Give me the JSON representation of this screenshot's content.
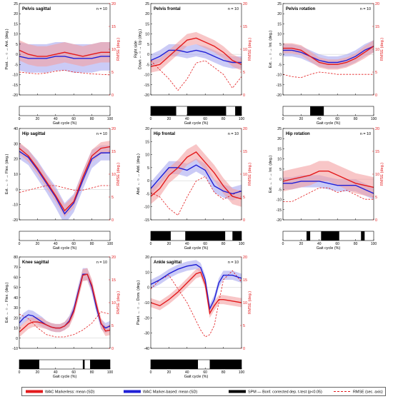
{
  "common": {
    "xlabel": "Gait cycle (%)",
    "xlim": [
      0,
      100
    ],
    "xticks": [
      0,
      20,
      40,
      60,
      80,
      100
    ],
    "rmse_label": "RMSE (deg.)",
    "rmse_lim": [
      0,
      20
    ],
    "rmse_ticks": [
      0,
      5,
      10,
      15,
      20
    ],
    "colors": {
      "markerless": "#e31a1c",
      "markerbased": "#1f1fd6",
      "spm": "#000000",
      "rmse": "#e31a1c"
    }
  },
  "legend": {
    "markerless": "WAC Markerless: mean (SD)",
    "markerbased": "WAC Marker-based: mean (SD)",
    "spm": "SPM — Bonf. corrected dep. t-test (p<0.05)",
    "rmse": "RMSE (sec. axis)"
  },
  "chart_data": [
    {
      "type": "line",
      "title": "Pelvis sagittal",
      "n_label": "n = 10",
      "ylabel": "Post. ← ○ → Ant. (deg.)",
      "ylim": [
        -20,
        25
      ],
      "yticks": [
        -20,
        -15,
        -10,
        -5,
        0,
        5,
        10,
        15,
        20,
        25
      ],
      "series": [
        {
          "name": "WAC Markerless",
          "x": [
            0,
            10,
            20,
            30,
            40,
            50,
            60,
            70,
            80,
            90,
            100
          ],
          "mean": [
            2,
            0,
            -1,
            -1,
            0,
            1,
            0,
            -1,
            0,
            1,
            1
          ],
          "sd": [
            5,
            5,
            5,
            5,
            5,
            5,
            5,
            5,
            5,
            5,
            5
          ]
        },
        {
          "name": "WAC Marker-based",
          "x": [
            0,
            10,
            20,
            30,
            40,
            50,
            60,
            70,
            80,
            90,
            100
          ],
          "mean": [
            -1,
            -2,
            -2,
            -2,
            -1,
            -1,
            -2,
            -2,
            -2,
            -1,
            -1
          ],
          "sd": [
            7,
            7,
            7,
            7,
            7,
            7,
            7,
            7,
            7,
            7,
            7
          ]
        }
      ],
      "rmse": {
        "x": [
          0,
          10,
          20,
          30,
          40,
          50,
          60,
          70,
          80,
          90,
          100
        ],
        "values": [
          5.0,
          4.8,
          4.6,
          4.8,
          5.2,
          5.4,
          5.0,
          4.8,
          4.6,
          4.5,
          4.4
        ]
      },
      "spm_significant": []
    },
    {
      "type": "line",
      "title": "Pelvis frontal",
      "n_label": "n = 10",
      "ylabel": "Right side\nDown ← ○ → Up (deg.)",
      "ylim": [
        -20,
        25
      ],
      "yticks": [
        -20,
        -15,
        -10,
        -5,
        0,
        5,
        10,
        15,
        20,
        25
      ],
      "series": [
        {
          "name": "WAC Markerless",
          "x": [
            0,
            10,
            20,
            30,
            40,
            50,
            60,
            70,
            80,
            90,
            100
          ],
          "mean": [
            -6,
            -5,
            -1,
            3,
            7,
            8,
            6,
            4,
            1,
            -3,
            -5
          ],
          "sd": [
            3,
            3,
            3,
            3,
            3,
            3,
            3,
            3,
            3,
            3,
            3
          ]
        },
        {
          "name": "WAC Marker-based",
          "x": [
            0,
            10,
            20,
            30,
            40,
            50,
            60,
            70,
            80,
            90,
            100
          ],
          "mean": [
            -3,
            -1,
            2,
            2,
            1,
            2,
            1,
            -1,
            -3,
            -4,
            -4
          ],
          "sd": [
            3,
            3,
            3,
            3,
            3,
            3,
            3,
            3,
            3,
            3,
            3
          ]
        }
      ],
      "rmse": {
        "x": [
          0,
          10,
          20,
          30,
          40,
          50,
          60,
          70,
          80,
          90,
          100
        ],
        "values": [
          7.5,
          5.5,
          3.5,
          1.0,
          3.5,
          7.0,
          7.5,
          6.0,
          4.5,
          1.5,
          4.0
        ]
      },
      "spm_significant": [
        [
          0,
          28
        ],
        [
          40,
          83
        ],
        [
          93,
          100
        ]
      ]
    },
    {
      "type": "line",
      "title": "Pelvis rotation",
      "n_label": "n = 10",
      "ylabel": "Ext. ← ○ → Int. (deg.)",
      "ylim": [
        -20,
        25
      ],
      "yticks": [
        -20,
        -15,
        -10,
        -5,
        0,
        5,
        10,
        15,
        20,
        25
      ],
      "series": [
        {
          "name": "WAC Markerless",
          "x": [
            0,
            10,
            20,
            30,
            40,
            50,
            60,
            70,
            80,
            90,
            100
          ],
          "mean": [
            3,
            3,
            2,
            -1,
            -4,
            -5,
            -5,
            -4,
            -2,
            1,
            4
          ],
          "sd": [
            2.5,
            2.5,
            2.5,
            2.5,
            2.5,
            2.5,
            2.5,
            2.5,
            2.5,
            3,
            3
          ]
        },
        {
          "name": "WAC Marker-based",
          "x": [
            0,
            10,
            20,
            30,
            40,
            50,
            60,
            70,
            80,
            90,
            100
          ],
          "mean": [
            2,
            2,
            1,
            -1,
            -3,
            -4,
            -4,
            -3,
            -1,
            2,
            4
          ],
          "sd": [
            3,
            3,
            3,
            3,
            3,
            3,
            3,
            3,
            3,
            3,
            3
          ]
        }
      ],
      "rmse": {
        "x": [
          0,
          10,
          20,
          30,
          40,
          50,
          60,
          70,
          80,
          90,
          100
        ],
        "values": [
          4.5,
          4.0,
          3.8,
          4.5,
          5.0,
          4.8,
          4.5,
          4.5,
          4.5,
          4.5,
          4.5
        ]
      },
      "spm_significant": [
        [
          30,
          45
        ]
      ]
    },
    {
      "type": "line",
      "title": "Hip sagittal",
      "n_label": "n = 10",
      "ylabel": "Ext. ← ○ → Flex. (deg.)",
      "ylim": [
        -20,
        40
      ],
      "yticks": [
        -20,
        -10,
        0,
        10,
        20,
        30,
        40
      ],
      "series": [
        {
          "name": "WAC Markerless",
          "x": [
            0,
            10,
            20,
            30,
            40,
            50,
            60,
            70,
            80,
            90,
            100
          ],
          "mean": [
            27,
            22,
            14,
            5,
            -4,
            -14,
            -8,
            8,
            22,
            27,
            28
          ],
          "sd": [
            4,
            4,
            4,
            4,
            4,
            4,
            4,
            4,
            4,
            4,
            4
          ]
        },
        {
          "name": "WAC Marker-based",
          "x": [
            0,
            10,
            20,
            30,
            40,
            50,
            60,
            70,
            80,
            90,
            100
          ],
          "mean": [
            25,
            21,
            13,
            4,
            -5,
            -16,
            -9,
            6,
            20,
            24,
            24
          ],
          "sd": [
            5,
            5,
            6,
            6,
            7,
            7,
            6,
            6,
            6,
            5,
            5
          ]
        }
      ],
      "rmse": {
        "x": [
          0,
          10,
          20,
          30,
          40,
          50,
          60,
          70,
          80,
          90,
          100
        ],
        "values": [
          6.0,
          6.5,
          7.0,
          7.5,
          7.5,
          7.0,
          6.5,
          6.5,
          7.0,
          7.5,
          7.5
        ]
      },
      "spm_significant": []
    },
    {
      "type": "line",
      "title": "Hip frontal",
      "n_label": "n = 10",
      "ylabel": "Abd. ← ○ → Add. (deg.)",
      "ylim": [
        -15,
        20
      ],
      "yticks": [
        -15,
        -10,
        -5,
        0,
        5,
        10,
        15,
        20
      ],
      "series": [
        {
          "name": "WAC Markerless",
          "x": [
            0,
            10,
            20,
            30,
            40,
            50,
            60,
            70,
            80,
            90,
            100
          ],
          "mean": [
            -6,
            -3,
            2,
            5,
            9,
            11,
            7,
            3,
            -2,
            -6,
            -7
          ],
          "sd": [
            3,
            3,
            3,
            3,
            3,
            3,
            3,
            3,
            3,
            3,
            3
          ]
        },
        {
          "name": "WAC Marker-based",
          "x": [
            0,
            10,
            20,
            30,
            40,
            50,
            60,
            70,
            80,
            90,
            100
          ],
          "mean": [
            -3,
            1,
            5,
            5,
            4,
            6,
            4,
            -2,
            -4,
            -5,
            -4
          ],
          "sd": [
            2.5,
            2.5,
            2.5,
            2.5,
            2.5,
            2.5,
            2.5,
            2.5,
            2.5,
            2.5,
            2.5
          ]
        }
      ],
      "rmse": {
        "x": [
          0,
          10,
          20,
          30,
          40,
          50,
          60,
          70,
          80,
          90,
          100
        ],
        "values": [
          6.0,
          5.0,
          2.5,
          1.0,
          5.0,
          8.5,
          9.5,
          6.0,
          4.5,
          5.5,
          6.5
        ]
      },
      "spm_significant": [
        [
          0,
          22
        ],
        [
          38,
          82
        ],
        [
          90,
          100
        ]
      ]
    },
    {
      "type": "line",
      "title": "Hip rotation",
      "n_label": "n = 10",
      "ylabel": "Ext. ← ○ → Int. (deg.)",
      "ylim": [
        -20,
        25
      ],
      "yticks": [
        -20,
        -15,
        -10,
        -5,
        0,
        5,
        10,
        15,
        20,
        25
      ],
      "series": [
        {
          "name": "WAC Markerless",
          "x": [
            0,
            10,
            20,
            30,
            40,
            50,
            60,
            70,
            80,
            90,
            100
          ],
          "mean": [
            -1,
            0,
            1,
            2,
            4,
            4,
            2,
            0,
            -2,
            -3,
            -4
          ],
          "sd": [
            5,
            5,
            5,
            5,
            5,
            5,
            5,
            5,
            5,
            5,
            5
          ]
        },
        {
          "name": "WAC Marker-based",
          "x": [
            0,
            10,
            20,
            30,
            40,
            50,
            60,
            70,
            80,
            90,
            100
          ],
          "mean": [
            -2,
            -2,
            -1,
            -1,
            -1,
            -2,
            -3,
            -3,
            -3,
            -5,
            -7
          ],
          "sd": [
            3,
            3,
            3,
            3,
            3,
            3,
            3,
            3,
            3,
            3,
            3
          ]
        }
      ],
      "rmse": {
        "x": [
          0,
          10,
          20,
          30,
          40,
          50,
          60,
          70,
          80,
          90,
          100
        ],
        "values": [
          4.0,
          4.0,
          5.0,
          6.0,
          7.0,
          7.0,
          6.0,
          6.5,
          5.5,
          4.5,
          4.5
        ]
      },
      "spm_significant": [
        [
          26,
          30
        ],
        [
          42,
          62
        ],
        [
          86,
          90
        ]
      ]
    },
    {
      "type": "line",
      "title": "Knee sagittal",
      "n_label": "n = 10",
      "ylabel": "Ext. ← ○ → Flex. (deg.)",
      "ylim": [
        -10,
        80
      ],
      "yticks": [
        -10,
        0,
        10,
        20,
        30,
        40,
        50,
        60,
        70,
        80
      ],
      "series": [
        {
          "name": "WAC Markerless",
          "x": [
            0,
            5,
            10,
            15,
            20,
            25,
            30,
            35,
            40,
            45,
            50,
            55,
            60,
            65,
            70,
            75,
            80,
            85,
            90,
            95,
            100
          ],
          "mean": [
            6,
            10,
            14,
            16,
            16,
            15,
            13,
            11,
            10,
            10,
            12,
            16,
            26,
            44,
            62,
            63,
            52,
            33,
            15,
            7,
            8
          ],
          "sd": [
            5,
            5,
            5,
            5,
            5,
            5,
            4,
            4,
            4,
            4,
            4,
            5,
            5,
            6,
            6,
            6,
            6,
            5,
            5,
            5,
            5
          ]
        },
        {
          "name": "WAC Marker-based",
          "x": [
            0,
            5,
            10,
            15,
            20,
            25,
            30,
            35,
            40,
            45,
            50,
            55,
            60,
            65,
            70,
            75,
            80,
            85,
            90,
            95,
            100
          ],
          "mean": [
            15,
            20,
            23,
            22,
            19,
            16,
            13,
            11,
            10,
            10,
            12,
            17,
            28,
            46,
            63,
            63,
            50,
            30,
            14,
            10,
            12
          ],
          "sd": [
            5,
            5,
            5,
            5,
            5,
            5,
            4,
            4,
            4,
            4,
            4,
            5,
            5,
            6,
            6,
            6,
            6,
            5,
            5,
            5,
            5
          ]
        }
      ],
      "rmse": {
        "x": [
          0,
          10,
          20,
          30,
          40,
          50,
          60,
          70,
          80,
          90,
          100
        ],
        "values": [
          7.5,
          6.5,
          4.5,
          3.0,
          2.5,
          2.5,
          3.0,
          4.0,
          5.5,
          8.0,
          7.5
        ]
      },
      "spm_significant": [
        [
          0,
          22
        ],
        [
          70,
          72
        ],
        [
          78,
          100
        ]
      ]
    },
    {
      "type": "line",
      "title": "Ankle sagittal",
      "n_label": "n = 10",
      "ylabel": "Plant. ← ○ → Dors. (deg.)",
      "ylim": [
        -40,
        20
      ],
      "yticks": [
        -40,
        -30,
        -20,
        -10,
        0,
        10,
        20
      ],
      "series": [
        {
          "name": "WAC Markerless",
          "x": [
            0,
            10,
            20,
            30,
            40,
            50,
            55,
            60,
            65,
            70,
            75,
            80,
            90,
            100
          ],
          "mean": [
            -10,
            -12,
            -8,
            -3,
            3,
            9,
            10,
            2,
            -17,
            -12,
            -8,
            -8,
            -9,
            -10
          ],
          "sd": [
            3,
            3,
            3,
            3,
            3,
            3,
            3,
            3,
            3,
            3,
            3,
            3,
            3,
            3
          ]
        },
        {
          "name": "WAC Marker-based",
          "x": [
            0,
            10,
            20,
            30,
            40,
            50,
            55,
            60,
            65,
            70,
            75,
            80,
            90,
            100
          ],
          "mean": [
            2,
            5,
            9,
            12,
            14,
            15,
            13,
            5,
            -14,
            -8,
            3,
            8,
            8,
            6
          ],
          "sd": [
            3,
            3,
            3,
            3,
            3,
            3,
            3,
            3,
            3,
            3,
            3,
            3,
            3,
            3
          ]
        }
      ],
      "rmse": {
        "x": [
          0,
          10,
          20,
          30,
          40,
          50,
          55,
          60,
          65,
          70,
          75,
          80,
          90,
          100
        ],
        "values": [
          13.0,
          15.0,
          16.0,
          13.0,
          10.0,
          6.0,
          4.0,
          2.5,
          3.0,
          5.0,
          10.0,
          15.0,
          17.0,
          14.5
        ]
      },
      "spm_significant": [
        [
          0,
          52
        ],
        [
          65,
          100
        ]
      ]
    }
  ]
}
